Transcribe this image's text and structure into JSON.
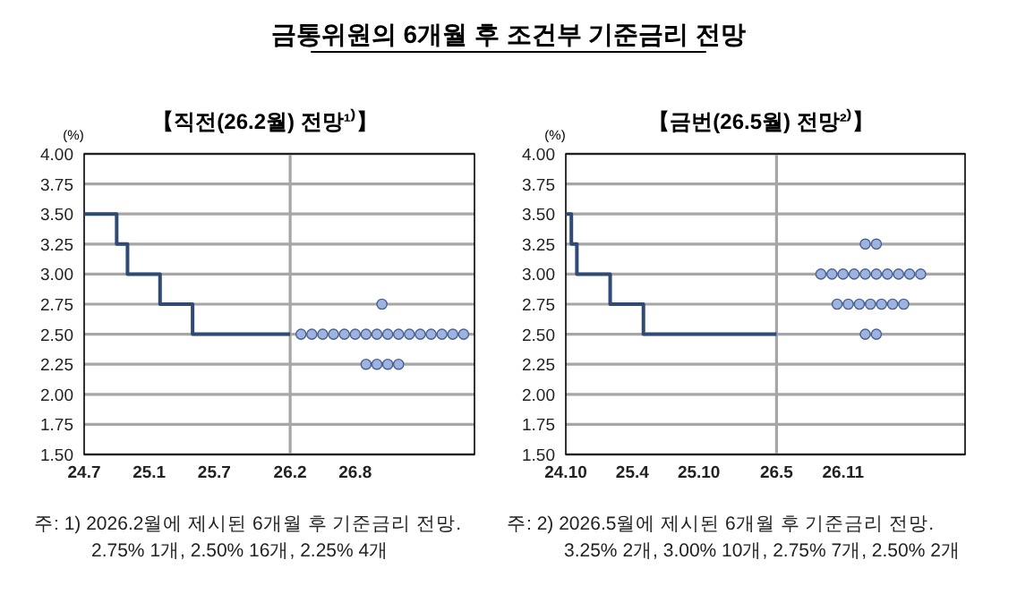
{
  "chart_data": [
    {
      "type": "line",
      "title": "금통위원의 6개월 후 조건부 기준금리 전망",
      "subtitle": "【직전(26.2월) 전망¹⁾】",
      "ylabel": "(%)",
      "xlim": [
        "2024-07",
        "2027-07"
      ],
      "xticks": [
        {
          "value": "2024-07",
          "label": "24.7"
        },
        {
          "value": "2025-01",
          "label": "25.1"
        },
        {
          "value": "2025-07",
          "label": "25.7"
        },
        {
          "value": "2026-02",
          "label": "26.2"
        },
        {
          "value": "2026-08",
          "label": "26.8"
        }
      ],
      "ylim": [
        1.5,
        4.0
      ],
      "yticks": [
        {
          "value": 1.5,
          "label": "1.50"
        },
        {
          "value": 1.75,
          "label": "1.75"
        },
        {
          "value": 2.0,
          "label": "2.00"
        },
        {
          "value": 2.25,
          "label": "2.25"
        },
        {
          "value": 2.5,
          "label": "2.50"
        },
        {
          "value": 2.75,
          "label": "2.75"
        },
        {
          "value": 3.0,
          "label": "3.00"
        },
        {
          "value": 3.25,
          "label": "3.25"
        },
        {
          "value": 3.5,
          "label": "3.50"
        },
        {
          "value": 3.75,
          "label": "3.75"
        },
        {
          "value": 4.0,
          "label": "4.00"
        }
      ],
      "grid": "y",
      "ref_lines": [
        {
          "axis": "x",
          "value": "2026-02",
          "color": "#a6a6a6"
        }
      ],
      "series": [
        {
          "type": "step",
          "color": "#2f4a75",
          "x": [
            "2024-07",
            "2024-10",
            "2024-11",
            "2025-02",
            "2025-05",
            "2026-02"
          ],
          "values": [
            3.5,
            3.25,
            3.0,
            2.75,
            2.5,
            2.5
          ]
        },
        {
          "type": "scatter",
          "color": "#9db3e0",
          "marker": "circle",
          "x": [
            "2026-10-15",
            "2026-03",
            "2026-04",
            "2026-05",
            "2026-06",
            "2026-07",
            "2026-08",
            "2026-09",
            "2026-10",
            "2026-11",
            "2026-12",
            "2027-01",
            "2027-02",
            "2027-03",
            "2027-04",
            "2027-05",
            "2027-06",
            "2026-09",
            "2026-10",
            "2026-11",
            "2026-12"
          ],
          "values": [
            2.75,
            2.5,
            2.5,
            2.5,
            2.5,
            2.5,
            2.5,
            2.5,
            2.5,
            2.5,
            2.5,
            2.5,
            2.5,
            2.5,
            2.5,
            2.5,
            2.5,
            2.25,
            2.25,
            2.25,
            2.25
          ]
        }
      ],
      "annotations": [
        "주: 1) 2026.2월에 제시된 6개월 후 기준금리 전망.",
        "2.75% 1개, 2.50% 16개, 2.25% 4개"
      ]
    },
    {
      "type": "line",
      "subtitle": "【금번(26.5월) 전망²⁾】",
      "ylabel": "(%)",
      "xlim": [
        "2024-10",
        "2027-10"
      ],
      "xticks": [
        {
          "value": "2024-10",
          "label": "24.10"
        },
        {
          "value": "2025-04",
          "label": "25.4"
        },
        {
          "value": "2025-10",
          "label": "25.10"
        },
        {
          "value": "2026-05",
          "label": "26.5"
        },
        {
          "value": "2026-11",
          "label": "26.11"
        }
      ],
      "ylim": [
        1.5,
        4.0
      ],
      "yticks": [
        {
          "value": 1.5,
          "label": "1.50"
        },
        {
          "value": 1.75,
          "label": "1.75"
        },
        {
          "value": 2.0,
          "label": "2.00"
        },
        {
          "value": 2.25,
          "label": "2.25"
        },
        {
          "value": 2.5,
          "label": "2.50"
        },
        {
          "value": 2.75,
          "label": "2.75"
        },
        {
          "value": 3.0,
          "label": "3.00"
        },
        {
          "value": 3.25,
          "label": "3.25"
        },
        {
          "value": 3.5,
          "label": "3.50"
        },
        {
          "value": 3.75,
          "label": "3.75"
        },
        {
          "value": 4.0,
          "label": "4.00"
        }
      ],
      "grid": "y",
      "ref_lines": [
        {
          "axis": "x",
          "value": "2026-05",
          "color": "#a6a6a6"
        }
      ],
      "series": [
        {
          "type": "step",
          "color": "#2f4a75",
          "x": [
            "2024-10",
            "2024-10-16",
            "2024-11",
            "2025-02",
            "2025-05",
            "2026-05"
          ],
          "values": [
            3.5,
            3.25,
            3.0,
            2.75,
            2.5,
            2.5
          ]
        },
        {
          "type": "scatter",
          "color": "#9db3e0",
          "marker": "circle",
          "x": [
            "2027-01",
            "2027-02",
            "2026-09",
            "2026-10",
            "2026-11",
            "2026-12",
            "2027-01",
            "2027-02",
            "2027-03",
            "2027-04",
            "2027-05",
            "2027-06",
            "2026-10-15",
            "2026-11-15",
            "2026-12-15",
            "2027-01-15",
            "2027-02-15",
            "2027-03-15",
            "2027-04-15",
            "2027-01",
            "2027-02"
          ],
          "values": [
            3.25,
            3.25,
            3.0,
            3.0,
            3.0,
            3.0,
            3.0,
            3.0,
            3.0,
            3.0,
            3.0,
            3.0,
            2.75,
            2.75,
            2.75,
            2.75,
            2.75,
            2.75,
            2.75,
            2.5,
            2.5
          ]
        }
      ],
      "annotations": [
        "주: 2) 2026.5월에 제시된 6개월 후 기준금리 전망.",
        "3.25% 2개, 3.00% 10개, 2.75% 7개, 2.50% 2개"
      ]
    }
  ]
}
